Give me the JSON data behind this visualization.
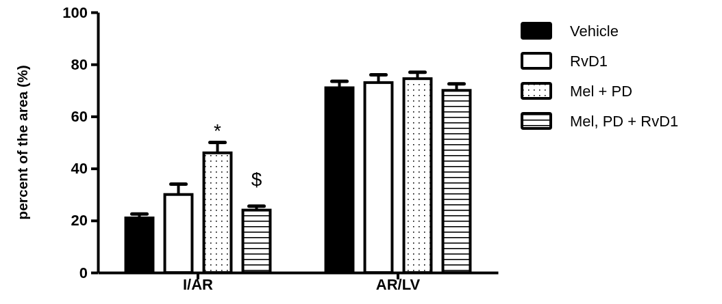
{
  "chart_data": {
    "type": "bar",
    "ylabel": "percent of the area (%)",
    "categories": [
      "I/AR",
      "AR/LV"
    ],
    "series": [
      {
        "name": "Vehicle",
        "color": "#000000",
        "values": [
          21,
          71
        ],
        "errors": [
          1.5,
          2.5
        ]
      },
      {
        "name": "RvD1",
        "color": "#ffffff",
        "values": [
          30,
          73
        ],
        "errors": [
          4,
          3
        ]
      },
      {
        "name": "Mel + PD",
        "color": "#000000",
        "values": [
          46,
          74.5
        ],
        "errors": [
          4,
          2.5
        ]
      },
      {
        "name": "Mel, PD + RvD1",
        "color": "#000000",
        "values": [
          24,
          70
        ],
        "errors": [
          1.5,
          2.5
        ]
      }
    ],
    "ylim": [
      0,
      100
    ],
    "yticks": [
      0,
      20,
      40,
      60,
      80,
      100
    ],
    "grid": false,
    "legend": "right",
    "annotations": [
      "*",
      "$"
    ]
  }
}
